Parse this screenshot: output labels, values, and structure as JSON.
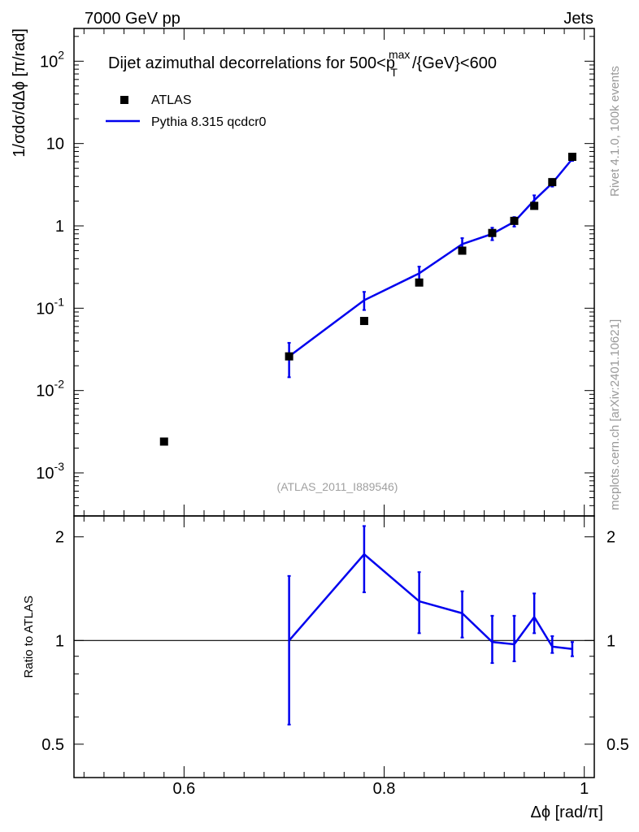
{
  "header": {
    "left": "7000 GeV pp",
    "right": "Jets"
  },
  "side_labels": {
    "rivet": "Rivet 4.1.0,  100k events",
    "mcplots": "mcplots.cern.ch [arXiv:2401.10621]"
  },
  "chart_data": [
    {
      "type": "scatter",
      "panel": "main",
      "title_main": "Dijet azimuthal decorrelations for 500<p",
      "title_sup": "max",
      "title_sub": "T",
      "title_tail": "/{GeV}<600",
      "ylabel": "1/σdσ/dΔϕ [π/rad]",
      "yscale": "log",
      "ylim": [
        0.0003,
        250
      ],
      "xlim": [
        0.49,
        1.01
      ],
      "analysis_tag": "(ATLAS_2011_I889546)",
      "yticks": [
        {
          "base": "10",
          "exp": "-3",
          "value": 0.001
        },
        {
          "base": "10",
          "exp": "-2",
          "value": 0.01
        },
        {
          "base": "10",
          "exp": "-1",
          "value": 0.1
        },
        {
          "base": "1",
          "exp": "",
          "value": 1
        },
        {
          "base": "10",
          "exp": "",
          "value": 10
        },
        {
          "base": "10",
          "exp": "2",
          "value": 100
        }
      ],
      "series": [
        {
          "name": "ATLAS",
          "style": "markers",
          "color": "#000000",
          "x": [
            0.58,
            0.705,
            0.78,
            0.835,
            0.878,
            0.908,
            0.93,
            0.95,
            0.968,
            0.988
          ],
          "y": [
            0.0024,
            0.026,
            0.07,
            0.205,
            0.5,
            0.82,
            1.15,
            1.75,
            3.4,
            6.9
          ]
        },
        {
          "name": "Pythia 8.315 qcdcr0",
          "style": "line",
          "color": "#0000ee",
          "x": [
            0.705,
            0.78,
            0.835,
            0.878,
            0.908,
            0.93,
            0.95,
            0.968,
            0.988
          ],
          "y": [
            0.026,
            0.125,
            0.265,
            0.6,
            0.8,
            1.12,
            2.05,
            3.3,
            6.5
          ],
          "yerr_low": [
            0.0145,
            0.095,
            0.215,
            0.49,
            0.67,
            0.98,
            1.72,
            3.0,
            6.15
          ],
          "yerr_high": [
            0.038,
            0.158,
            0.32,
            0.71,
            0.95,
            1.28,
            2.35,
            3.7,
            6.9
          ]
        }
      ]
    },
    {
      "type": "line",
      "panel": "ratio",
      "ylabel": "Ratio to ATLAS",
      "xlabel": "Δϕ [rad/π]",
      "ylim": [
        0.4,
        2.3
      ],
      "yscale": "log",
      "yticks": [
        {
          "label": "0.5",
          "value": 0.5
        },
        {
          "label": "1",
          "value": 1
        },
        {
          "label": "2",
          "value": 2
        }
      ],
      "xticks": [
        {
          "label": "0.6",
          "value": 0.6
        },
        {
          "label": "0.8",
          "value": 0.8
        },
        {
          "label": "1",
          "value": 1.0
        }
      ],
      "reference": 1,
      "series": [
        {
          "name": "Pythia 8.315 qcdcr0",
          "color": "#0000ee",
          "x": [
            0.705,
            0.78,
            0.835,
            0.878,
            0.908,
            0.93,
            0.95,
            0.968,
            0.988
          ],
          "y": [
            1.0,
            1.78,
            1.3,
            1.2,
            0.99,
            0.975,
            1.17,
            0.96,
            0.945
          ],
          "yerr_low": [
            0.57,
            1.38,
            1.05,
            1.02,
            0.86,
            0.87,
            1.05,
            0.92,
            0.9
          ],
          "yerr_high": [
            1.54,
            2.15,
            1.58,
            1.39,
            1.18,
            1.18,
            1.37,
            1.03,
            0.99
          ]
        }
      ]
    }
  ]
}
